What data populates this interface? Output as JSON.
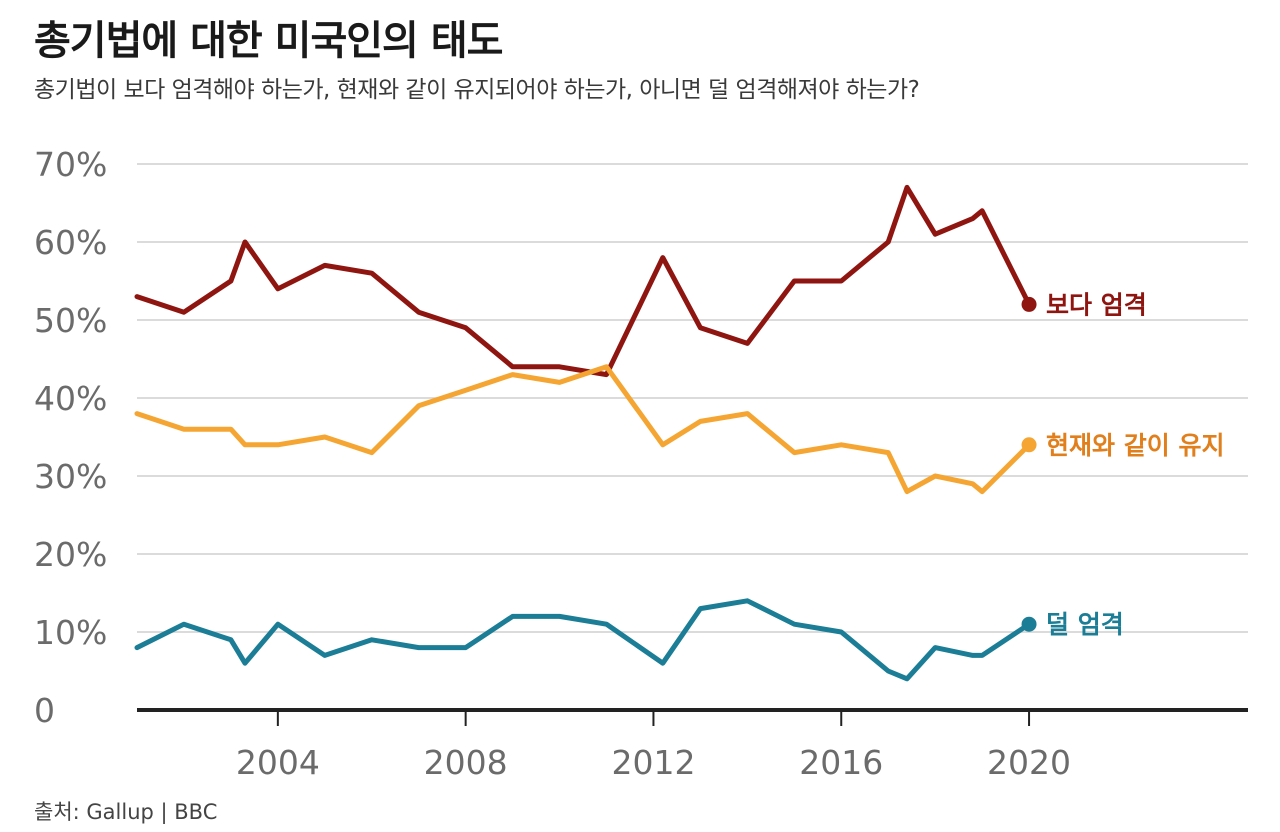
{
  "header": {
    "title": "총기법에 대한 미국인의 태도",
    "subtitle": "총기법이 보다 엄격해야 하는가, 현재와 같이 유지되어야 하는가, 아니면 덜 엄격해져야 하는가?"
  },
  "footer": {
    "source": "출처: Gallup | BBC"
  },
  "chart_data": {
    "type": "line",
    "title": "총기법에 대한 미국인의 태도",
    "subtitle": "총기법이 보다 엄격해야 하는가, 현재와 같이 유지되어야 하는가, 아니면 덜 엄격해져야 하는가?",
    "xlabel": "",
    "ylabel": "",
    "xlim": [
      2001,
      2025
    ],
    "ylim": [
      0,
      70
    ],
    "y_ticks": [
      0,
      10,
      20,
      30,
      40,
      50,
      60,
      70
    ],
    "y_tick_labels": [
      "0",
      "10%",
      "20%",
      "30%",
      "40%",
      "50%",
      "60%",
      "70%"
    ],
    "x_ticks": [
      2004,
      2008,
      2012,
      2016,
      2020
    ],
    "x_tick_labels": [
      "2004",
      "2008",
      "2012",
      "2016",
      "2020"
    ],
    "grid": true,
    "legend": "inline labels at line ends",
    "series": [
      {
        "name": "보다 엄격",
        "color": "#8f1610",
        "points": [
          [
            2001,
            53
          ],
          [
            2002,
            51
          ],
          [
            2003,
            55
          ],
          [
            2003.3,
            60
          ],
          [
            2004,
            54
          ],
          [
            2005,
            57
          ],
          [
            2006,
            56
          ],
          [
            2007,
            51
          ],
          [
            2008,
            49
          ],
          [
            2009,
            44
          ],
          [
            2010,
            44
          ],
          [
            2011,
            43
          ],
          [
            2012.2,
            58
          ],
          [
            2013,
            49
          ],
          [
            2014,
            47
          ],
          [
            2015,
            55
          ],
          [
            2016,
            55
          ],
          [
            2017,
            60
          ],
          [
            2017.4,
            67
          ],
          [
            2018,
            61
          ],
          [
            2018.8,
            63
          ],
          [
            2019,
            64
          ],
          [
            2020,
            52
          ]
        ]
      },
      {
        "name": "현재와 같이 유지",
        "color": "#f5a532",
        "points": [
          [
            2001,
            38
          ],
          [
            2002,
            36
          ],
          [
            2003,
            36
          ],
          [
            2003.3,
            34
          ],
          [
            2004,
            34
          ],
          [
            2005,
            35
          ],
          [
            2006,
            33
          ],
          [
            2007,
            39
          ],
          [
            2008,
            41
          ],
          [
            2009,
            43
          ],
          [
            2010,
            42
          ],
          [
            2011,
            44
          ],
          [
            2012.2,
            34
          ],
          [
            2013,
            37
          ],
          [
            2014,
            38
          ],
          [
            2015,
            33
          ],
          [
            2016,
            34
          ],
          [
            2017,
            33
          ],
          [
            2017.4,
            28
          ],
          [
            2018,
            30
          ],
          [
            2018.8,
            29
          ],
          [
            2019,
            28
          ],
          [
            2020,
            34
          ]
        ]
      },
      {
        "name": "덜 엄격",
        "color": "#1b7e96",
        "points": [
          [
            2001,
            8
          ],
          [
            2002,
            11
          ],
          [
            2003,
            9
          ],
          [
            2003.3,
            6
          ],
          [
            2004,
            11
          ],
          [
            2005,
            7
          ],
          [
            2006,
            9
          ],
          [
            2007,
            8
          ],
          [
            2008,
            8
          ],
          [
            2009,
            12
          ],
          [
            2010,
            12
          ],
          [
            2011,
            11
          ],
          [
            2012.2,
            6
          ],
          [
            2013,
            13
          ],
          [
            2014,
            14
          ],
          [
            2015,
            11
          ],
          [
            2016,
            10
          ],
          [
            2017,
            5
          ],
          [
            2017.4,
            4
          ],
          [
            2018,
            8
          ],
          [
            2018.8,
            7
          ],
          [
            2019,
            7
          ],
          [
            2020,
            11
          ]
        ]
      }
    ],
    "label_colors": [
      "#8f1610",
      "#e07f1c",
      "#1b7e96"
    ]
  }
}
